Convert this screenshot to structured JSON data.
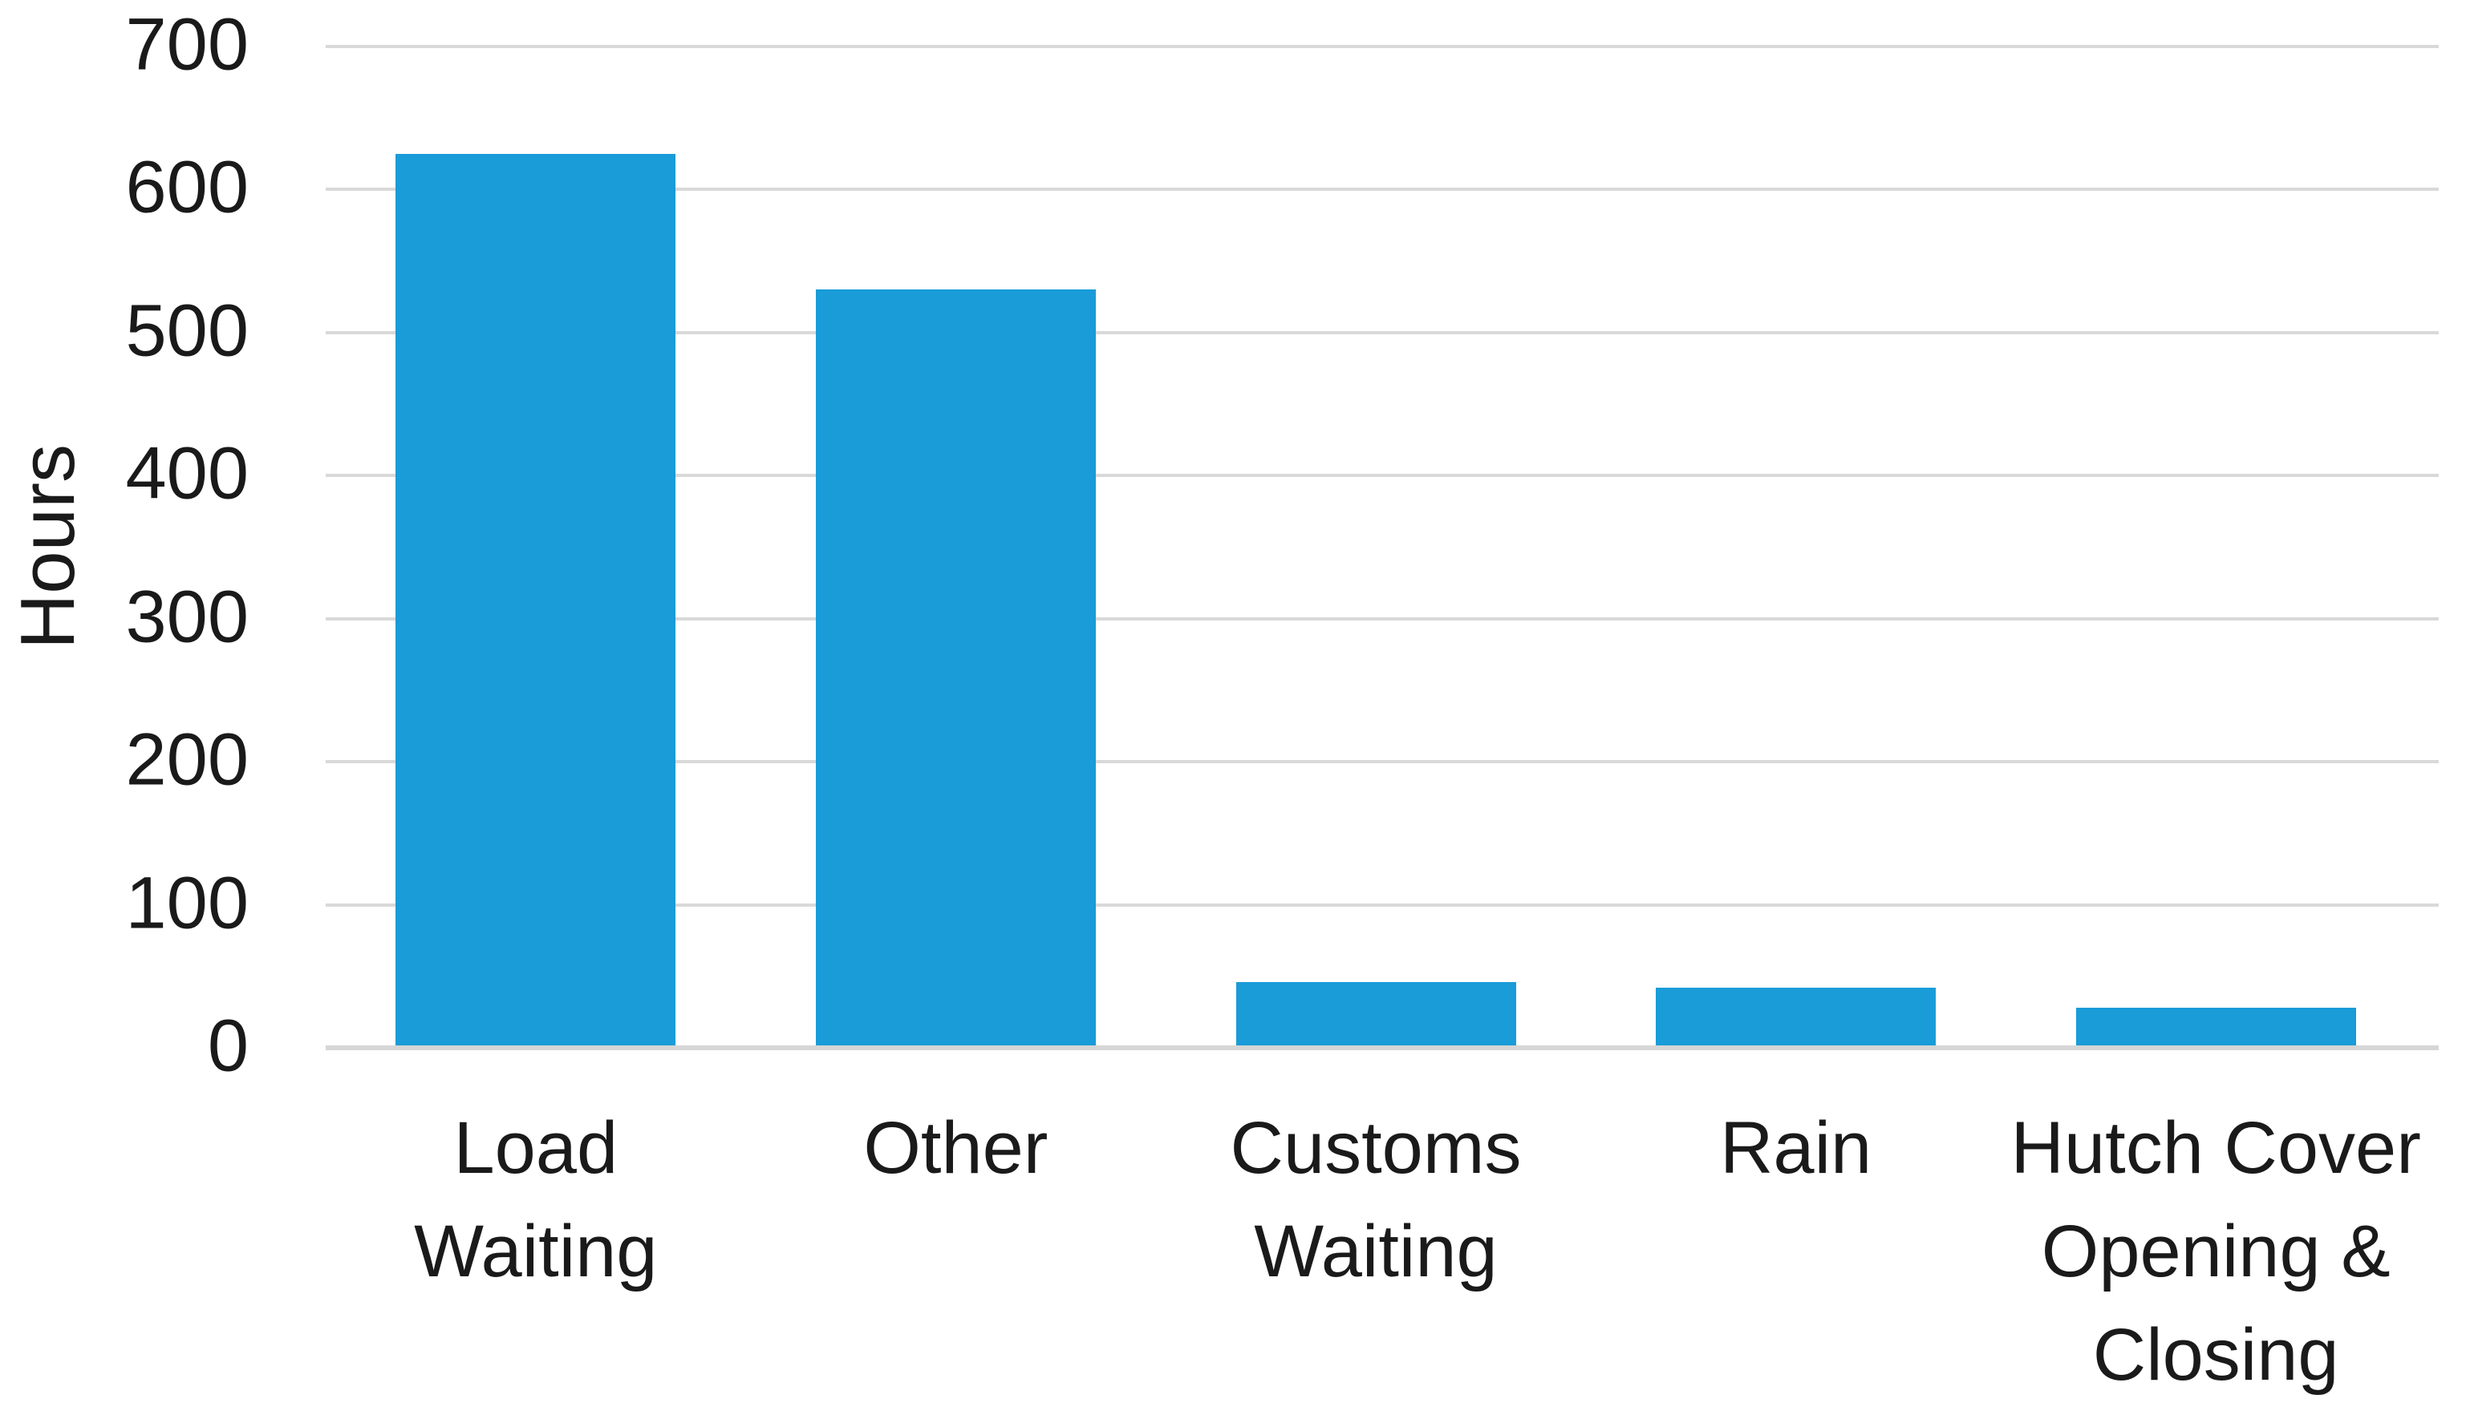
{
  "chart_data": {
    "type": "bar",
    "title": "",
    "xlabel": "",
    "ylabel": "Hours",
    "categories": [
      "Load Waiting",
      "Other",
      "Customs Waiting",
      "Rain",
      "Hutch Cover Opening & Closing"
    ],
    "values": [
      625,
      530,
      46,
      42,
      28
    ],
    "ylim": [
      0,
      700
    ],
    "yticks": [
      0,
      100,
      200,
      300,
      400,
      500,
      600,
      700
    ],
    "grid": "horizontal",
    "legend": "none",
    "bar_color": "#199cd8",
    "gridline_color": "#d9d9d9",
    "text_color": "#1a1a1a",
    "background_color": "#ffffff"
  }
}
